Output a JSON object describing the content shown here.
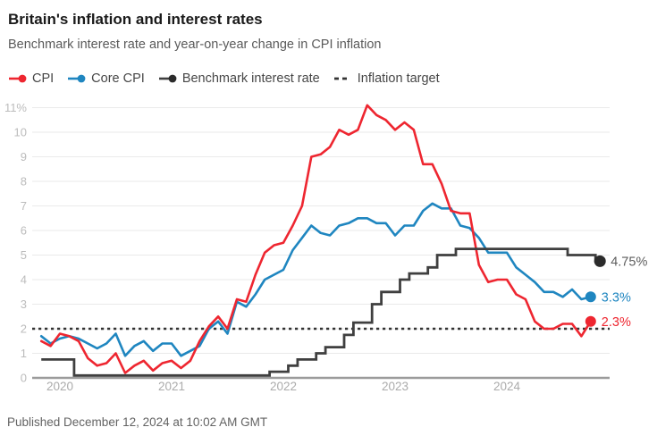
{
  "header": {
    "title": "Britain's inflation and interest rates",
    "subtitle": "Benchmark interest rate and year-on-year change in CPI inflation"
  },
  "footer": {
    "published": "Published December 12, 2024 at 10:02 AM GMT"
  },
  "colors": {
    "cpi_red": "#ee2630",
    "core_blue": "#1f86c0",
    "benchmark_dark": "#3f3f3f",
    "benchmark_dot": "#2b2b2b",
    "target_dash": "#333333",
    "gridline": "#eaeaea",
    "axis_line": "#9b9b9b"
  },
  "chart_data": {
    "type": "line",
    "title": "Britain's inflation and interest rates",
    "subtitle": "Benchmark interest rate and year-on-year change in CPI inflation",
    "grid": "horizontal",
    "legend_position": "top",
    "ylim": [
      0,
      11
    ],
    "y_tick_labels": [
      "0",
      "1",
      "2",
      "3",
      "4",
      "5",
      "6",
      "7",
      "8",
      "9",
      "10",
      "11%"
    ],
    "x_tick_labels": [
      "2020",
      "2021",
      "2022",
      "2023",
      "2024"
    ],
    "months": [
      "2019-11",
      "2019-12",
      "2020-01",
      "2020-02",
      "2020-03",
      "2020-04",
      "2020-05",
      "2020-06",
      "2020-07",
      "2020-08",
      "2020-09",
      "2020-10",
      "2020-11",
      "2020-12",
      "2021-01",
      "2021-02",
      "2021-03",
      "2021-04",
      "2021-05",
      "2021-06",
      "2021-07",
      "2021-08",
      "2021-09",
      "2021-10",
      "2021-11",
      "2021-12",
      "2022-01",
      "2022-02",
      "2022-03",
      "2022-04",
      "2022-05",
      "2022-06",
      "2022-07",
      "2022-08",
      "2022-09",
      "2022-10",
      "2022-11",
      "2022-12",
      "2023-01",
      "2023-02",
      "2023-03",
      "2023-04",
      "2023-05",
      "2023-06",
      "2023-07",
      "2023-08",
      "2023-09",
      "2023-10",
      "2023-11",
      "2023-12",
      "2024-01",
      "2024-02",
      "2024-03",
      "2024-04",
      "2024-05",
      "2024-06",
      "2024-07",
      "2024-08",
      "2024-09",
      "2024-10",
      "2024-11"
    ],
    "series": [
      {
        "name": "CPI",
        "type": "line",
        "color": "#ee2630",
        "end_label": "2.3%",
        "end_label_color": "#ee2630",
        "values": [
          1.5,
          1.3,
          1.8,
          1.7,
          1.5,
          0.8,
          0.5,
          0.6,
          1.0,
          0.2,
          0.5,
          0.7,
          0.3,
          0.6,
          0.7,
          0.4,
          0.7,
          1.5,
          2.1,
          2.5,
          2.0,
          3.2,
          3.1,
          4.2,
          5.1,
          5.4,
          5.5,
          6.2,
          7.0,
          9.0,
          9.1,
          9.4,
          10.1,
          9.9,
          10.1,
          11.1,
          10.7,
          10.5,
          10.1,
          10.4,
          10.1,
          8.7,
          8.7,
          7.9,
          6.8,
          6.7,
          6.7,
          4.6,
          3.9,
          4.0,
          4.0,
          3.4,
          3.2,
          2.3,
          2.0,
          2.0,
          2.2,
          2.2,
          1.7,
          2.3
        ]
      },
      {
        "name": "Core CPI",
        "type": "line",
        "color": "#1f86c0",
        "end_label": "3.3%",
        "end_label_color": "#1f86c0",
        "values": [
          1.7,
          1.4,
          1.6,
          1.7,
          1.6,
          1.4,
          1.2,
          1.4,
          1.8,
          0.9,
          1.3,
          1.5,
          1.1,
          1.4,
          1.4,
          0.9,
          1.1,
          1.3,
          2.0,
          2.3,
          1.8,
          3.1,
          2.9,
          3.4,
          4.0,
          4.2,
          4.4,
          5.2,
          5.7,
          6.2,
          5.9,
          5.8,
          6.2,
          6.3,
          6.5,
          6.5,
          6.3,
          6.3,
          5.8,
          6.2,
          6.2,
          6.8,
          7.1,
          6.9,
          6.9,
          6.2,
          6.1,
          5.7,
          5.1,
          5.1,
          5.1,
          4.5,
          4.2,
          3.9,
          3.5,
          3.5,
          3.3,
          3.6,
          3.2,
          3.3
        ]
      },
      {
        "name": "Benchmark interest rate",
        "type": "step",
        "color": "#3f3f3f",
        "dot_color": "#2b2b2b",
        "end_label": "4.75%",
        "end_label_color": "#5c5c5c",
        "values": [
          0.75,
          0.75,
          0.75,
          0.75,
          0.1,
          0.1,
          0.1,
          0.1,
          0.1,
          0.1,
          0.1,
          0.1,
          0.1,
          0.1,
          0.1,
          0.1,
          0.1,
          0.1,
          0.1,
          0.1,
          0.1,
          0.1,
          0.1,
          0.1,
          0.1,
          0.25,
          0.25,
          0.5,
          0.75,
          0.75,
          1.0,
          1.25,
          1.25,
          1.75,
          2.25,
          2.25,
          3.0,
          3.5,
          3.5,
          4.0,
          4.25,
          4.25,
          4.5,
          5.0,
          5.0,
          5.25,
          5.25,
          5.25,
          5.25,
          5.25,
          5.25,
          5.25,
          5.25,
          5.25,
          5.25,
          5.25,
          5.25,
          5.0,
          5.0,
          5.0,
          4.75
        ]
      },
      {
        "name": "Inflation target",
        "type": "dashed-horizontal",
        "color": "#333333",
        "value": 2
      }
    ]
  }
}
